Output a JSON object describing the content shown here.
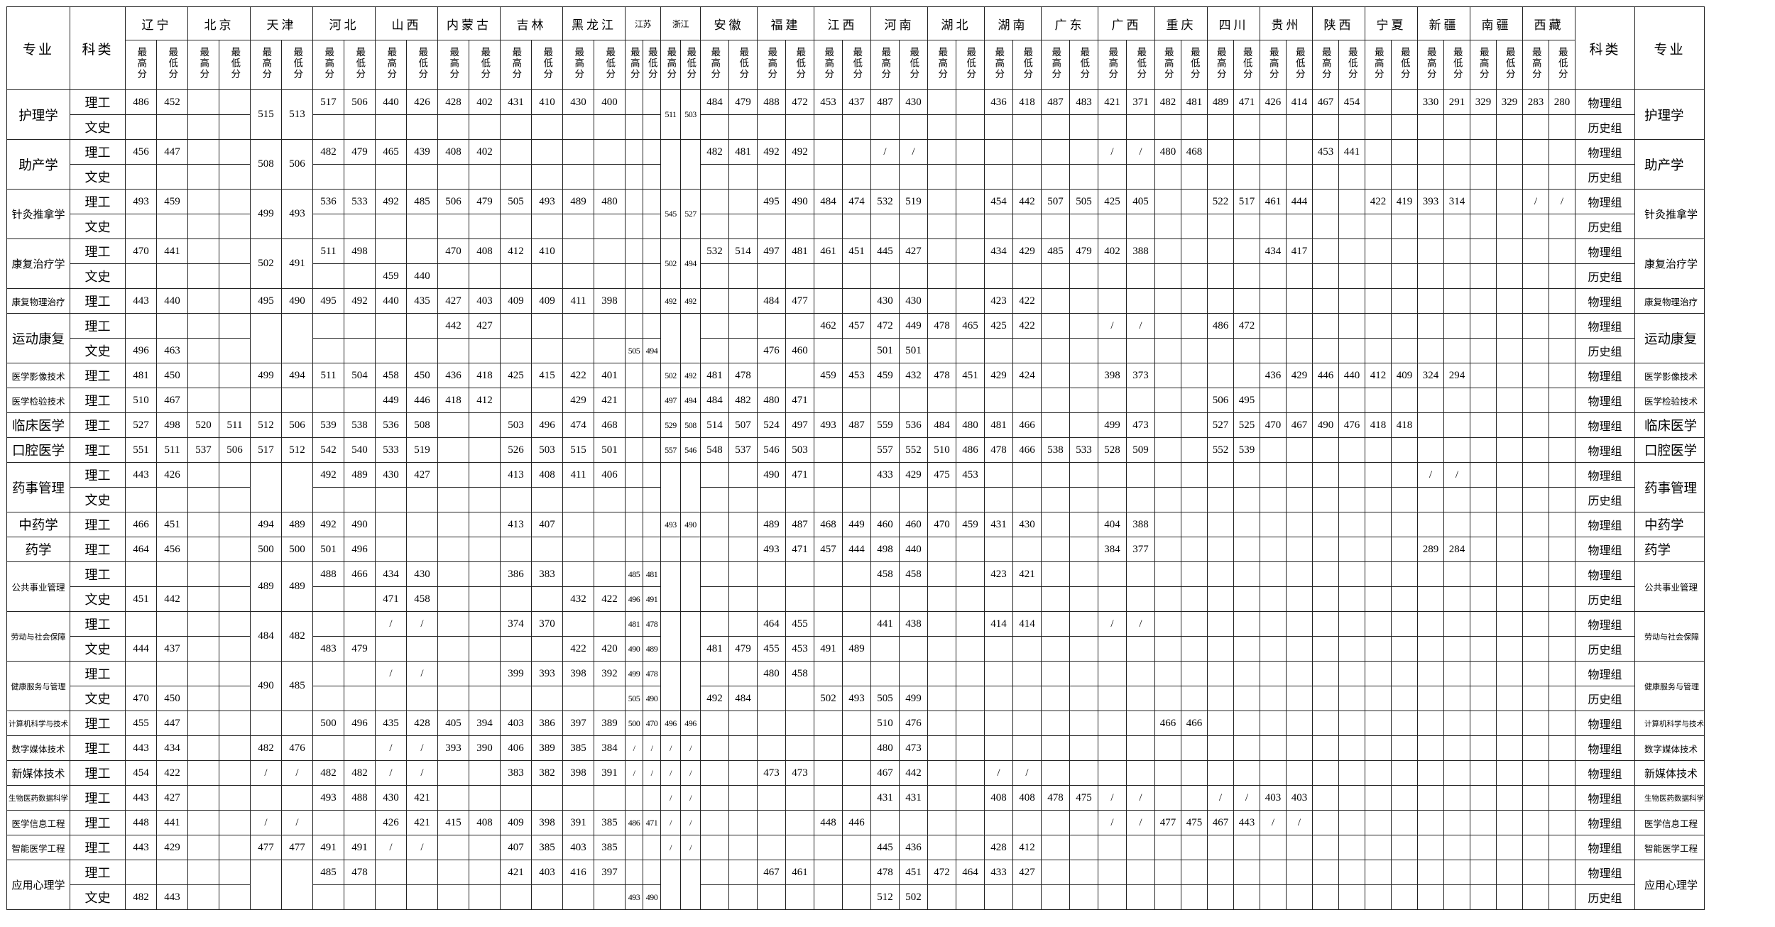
{
  "header": {
    "major_label": "专业",
    "category_label": "科类",
    "high_label": "最高分",
    "low_label": "最低分"
  },
  "labels": {
    "science": "理工",
    "arts": "文史",
    "physics": "物理组",
    "history": "历史组"
  },
  "provinces": [
    "辽宁",
    "北京",
    "天津",
    "河北",
    "山西",
    "内蒙古",
    "吉林",
    "黑龙江",
    "江苏",
    "浙江",
    "安徽",
    "福建",
    "江西",
    "河南",
    "湖北",
    "湖南",
    "广东",
    "广西",
    "重庆",
    "四川",
    "贵州",
    "陕西",
    "宁夏",
    "新疆",
    "南疆",
    "西藏"
  ],
  "majors": [
    {
      "name": "护理学",
      "science": {
        "辽宁": [
          "486",
          "452"
        ],
        "河北": [
          "517",
          "506"
        ],
        "山西": [
          "440",
          "426"
        ],
        "内蒙古": [
          "428",
          "402"
        ],
        "吉林": [
          "431",
          "410"
        ],
        "黑龙江": [
          "430",
          "400"
        ],
        "安徽": [
          "484",
          "479"
        ],
        "福建": [
          "488",
          "472"
        ],
        "江西": [
          "453",
          "437"
        ],
        "河南": [
          "487",
          "430"
        ],
        "湖南": [
          "436",
          "418"
        ],
        "广东": [
          "487",
          "483"
        ],
        "广西": [
          "421",
          "371"
        ],
        "重庆": [
          "482",
          "481"
        ],
        "四川": [
          "489",
          "471"
        ],
        "贵州": [
          "426",
          "414"
        ],
        "陕西": [
          "467",
          "454"
        ],
        "新疆": [
          "330",
          "291"
        ],
        "南疆": [
          "329",
          "329"
        ],
        "西藏": [
          "283",
          "280"
        ]
      },
      "arts": {},
      "merged": {
        "天津": [
          "515",
          "513"
        ],
        "浙江": [
          "511",
          "503"
        ]
      }
    },
    {
      "name": "助产学",
      "science": {
        "辽宁": [
          "456",
          "447"
        ],
        "河北": [
          "482",
          "479"
        ],
        "山西": [
          "465",
          "439"
        ],
        "内蒙古": [
          "408",
          "402"
        ],
        "安徽": [
          "482",
          "481"
        ],
        "福建": [
          "492",
          "492"
        ],
        "河南": [
          "/",
          "/"
        ],
        "广西": [
          "/",
          "/"
        ],
        "重庆": [
          "480",
          "468"
        ],
        "陕西": [
          "453",
          "441"
        ]
      },
      "arts": {},
      "merged": {
        "天津": [
          "508",
          "506"
        ]
      }
    },
    {
      "name": "针灸推拿学",
      "science": {
        "辽宁": [
          "493",
          "459"
        ],
        "河北": [
          "536",
          "533"
        ],
        "山西": [
          "492",
          "485"
        ],
        "内蒙古": [
          "506",
          "479"
        ],
        "吉林": [
          "505",
          "493"
        ],
        "黑龙江": [
          "489",
          "480"
        ],
        "福建": [
          "495",
          "490"
        ],
        "江西": [
          "484",
          "474"
        ],
        "河南": [
          "532",
          "519"
        ],
        "湖南": [
          "454",
          "442"
        ],
        "广东": [
          "507",
          "505"
        ],
        "广西": [
          "425",
          "405"
        ],
        "四川": [
          "522",
          "517"
        ],
        "贵州": [
          "461",
          "444"
        ],
        "宁夏": [
          "422",
          "419"
        ],
        "新疆": [
          "393",
          "314"
        ],
        "西藏": [
          "/",
          "/"
        ]
      },
      "arts": {},
      "merged": {
        "天津": [
          "499",
          "493"
        ],
        "浙江": [
          "545",
          "527"
        ]
      }
    },
    {
      "name": "康复治疗学",
      "science": {
        "辽宁": [
          "470",
          "441"
        ],
        "河北": [
          "511",
          "498"
        ],
        "内蒙古": [
          "470",
          "408"
        ],
        "吉林": [
          "412",
          "410"
        ],
        "安徽": [
          "532",
          "514"
        ],
        "福建": [
          "497",
          "481"
        ],
        "江西": [
          "461",
          "451"
        ],
        "河南": [
          "445",
          "427"
        ],
        "湖南": [
          "434",
          "429"
        ],
        "广东": [
          "485",
          "479"
        ],
        "广西": [
          "402",
          "388"
        ],
        "贵州": [
          "434",
          "417"
        ]
      },
      "arts": {
        "山西": [
          "459",
          "440"
        ]
      },
      "merged": {
        "天津": [
          "502",
          "491"
        ],
        "浙江": [
          "502",
          "494"
        ]
      }
    },
    {
      "name": "康复物理治疗",
      "science": {
        "辽宁": [
          "443",
          "440"
        ],
        "天津": [
          "495",
          "490"
        ],
        "河北": [
          "495",
          "492"
        ],
        "山西": [
          "440",
          "435"
        ],
        "内蒙古": [
          "427",
          "403"
        ],
        "吉林": [
          "409",
          "409"
        ],
        "黑龙江": [
          "411",
          "398"
        ],
        "浙江": [
          "492",
          "492"
        ],
        "福建": [
          "484",
          "477"
        ],
        "河南": [
          "430",
          "430"
        ],
        "湖南": [
          "423",
          "422"
        ]
      }
    },
    {
      "name": "运动康复",
      "science": {
        "内蒙古": [
          "442",
          "427"
        ],
        "江西": [
          "462",
          "457"
        ],
        "河南": [
          "472",
          "449"
        ],
        "湖北": [
          "478",
          "465"
        ],
        "湖南": [
          "425",
          "422"
        ],
        "广西": [
          "/",
          "/"
        ],
        "四川": [
          "486",
          "472"
        ]
      },
      "arts": {
        "辽宁": [
          "496",
          "463"
        ],
        "江苏": [
          "505",
          "494"
        ],
        "福建": [
          "476",
          "460"
        ],
        "河南": [
          "501",
          "501"
        ]
      },
      "merged": {}
    },
    {
      "name": "医学影像技术",
      "science": {
        "辽宁": [
          "481",
          "450"
        ],
        "天津": [
          "499",
          "494"
        ],
        "河北": [
          "511",
          "504"
        ],
        "山西": [
          "458",
          "450"
        ],
        "内蒙古": [
          "436",
          "418"
        ],
        "吉林": [
          "425",
          "415"
        ],
        "黑龙江": [
          "422",
          "401"
        ],
        "浙江": [
          "502",
          "492"
        ],
        "安徽": [
          "481",
          "478"
        ],
        "江西": [
          "459",
          "453"
        ],
        "河南": [
          "459",
          "432"
        ],
        "湖北": [
          "478",
          "451"
        ],
        "湖南": [
          "429",
          "424"
        ],
        "广西": [
          "398",
          "373"
        ],
        "贵州": [
          "436",
          "429"
        ],
        "陕西": [
          "446",
          "440"
        ],
        "宁夏": [
          "412",
          "409"
        ],
        "新疆": [
          "324",
          "294"
        ]
      }
    },
    {
      "name": "医学检验技术",
      "science": {
        "辽宁": [
          "510",
          "467"
        ],
        "山西": [
          "449",
          "446"
        ],
        "内蒙古": [
          "418",
          "412"
        ],
        "黑龙江": [
          "429",
          "421"
        ],
        "浙江": [
          "497",
          "494"
        ],
        "安徽": [
          "484",
          "482"
        ],
        "福建": [
          "480",
          "471"
        ],
        "四川": [
          "506",
          "495"
        ]
      }
    },
    {
      "name": "临床医学",
      "science": {
        "辽宁": [
          "527",
          "498"
        ],
        "北京": [
          "520",
          "511"
        ],
        "天津": [
          "512",
          "506"
        ],
        "河北": [
          "539",
          "538"
        ],
        "山西": [
          "536",
          "508"
        ],
        "吉林": [
          "503",
          "496"
        ],
        "黑龙江": [
          "474",
          "468"
        ],
        "浙江": [
          "529",
          "508"
        ],
        "安徽": [
          "514",
          "507"
        ],
        "福建": [
          "524",
          "497"
        ],
        "江西": [
          "493",
          "487"
        ],
        "河南": [
          "559",
          "536"
        ],
        "湖北": [
          "484",
          "480"
        ],
        "湖南": [
          "481",
          "466"
        ],
        "广西": [
          "499",
          "473"
        ],
        "四川": [
          "527",
          "525"
        ],
        "贵州": [
          "470",
          "467"
        ],
        "陕西": [
          "490",
          "476"
        ],
        "宁夏": [
          "418",
          "418"
        ]
      }
    },
    {
      "name": "口腔医学",
      "science": {
        "辽宁": [
          "551",
          "511"
        ],
        "北京": [
          "537",
          "506"
        ],
        "天津": [
          "517",
          "512"
        ],
        "河北": [
          "542",
          "540"
        ],
        "山西": [
          "533",
          "519"
        ],
        "吉林": [
          "526",
          "503"
        ],
        "黑龙江": [
          "515",
          "501"
        ],
        "浙江": [
          "557",
          "546"
        ],
        "安徽": [
          "548",
          "537"
        ],
        "福建": [
          "546",
          "503"
        ],
        "河南": [
          "557",
          "552"
        ],
        "湖北": [
          "510",
          "486"
        ],
        "湖南": [
          "478",
          "466"
        ],
        "广东": [
          "538",
          "533"
        ],
        "广西": [
          "528",
          "509"
        ],
        "四川": [
          "552",
          "539"
        ]
      }
    },
    {
      "name": "药事管理",
      "science": {
        "辽宁": [
          "443",
          "426"
        ],
        "河北": [
          "492",
          "489"
        ],
        "山西": [
          "430",
          "427"
        ],
        "吉林": [
          "413",
          "408"
        ],
        "黑龙江": [
          "411",
          "406"
        ],
        "福建": [
          "490",
          "471"
        ],
        "河南": [
          "433",
          "429"
        ],
        "湖北": [
          "475",
          "453"
        ],
        "新疆": [
          "/",
          "/"
        ]
      },
      "arts": {},
      "merged": {}
    },
    {
      "name": "中药学",
      "science": {
        "辽宁": [
          "466",
          "451"
        ],
        "天津": [
          "494",
          "489"
        ],
        "河北": [
          "492",
          "490"
        ],
        "吉林": [
          "413",
          "407"
        ],
        "浙江": [
          "493",
          "490"
        ],
        "福建": [
          "489",
          "487"
        ],
        "江西": [
          "468",
          "449"
        ],
        "河南": [
          "460",
          "460"
        ],
        "湖北": [
          "470",
          "459"
        ],
        "湖南": [
          "431",
          "430"
        ],
        "广西": [
          "404",
          "388"
        ]
      }
    },
    {
      "name": "药学",
      "science": {
        "辽宁": [
          "464",
          "456"
        ],
        "天津": [
          "500",
          "500"
        ],
        "河北": [
          "501",
          "496"
        ],
        "福建": [
          "493",
          "471"
        ],
        "江西": [
          "457",
          "444"
        ],
        "河南": [
          "498",
          "440"
        ],
        "广西": [
          "384",
          "377"
        ],
        "新疆": [
          "289",
          "284"
        ]
      }
    },
    {
      "name": "公共事业管理",
      "science": {
        "河北": [
          "488",
          "466"
        ],
        "山西": [
          "434",
          "430"
        ],
        "吉林": [
          "386",
          "383"
        ],
        "江苏": [
          "485",
          "481"
        ],
        "河南": [
          "458",
          "458"
        ],
        "湖南": [
          "423",
          "421"
        ]
      },
      "arts": {
        "辽宁": [
          "451",
          "442"
        ],
        "山西": [
          "471",
          "458"
        ],
        "黑龙江": [
          "432",
          "422"
        ],
        "江苏": [
          "496",
          "491"
        ]
      },
      "merged": {
        "天津": [
          "489",
          "489"
        ]
      }
    },
    {
      "name": "劳动与社会保障",
      "science": {
        "山西": [
          "/",
          "/"
        ],
        "吉林": [
          "374",
          "370"
        ],
        "江苏": [
          "481",
          "478"
        ],
        "福建": [
          "464",
          "455"
        ],
        "河南": [
          "441",
          "438"
        ],
        "湖南": [
          "414",
          "414"
        ],
        "广西": [
          "/",
          "/"
        ]
      },
      "arts": {
        "辽宁": [
          "444",
          "437"
        ],
        "河北": [
          "483",
          "479"
        ],
        "黑龙江": [
          "422",
          "420"
        ],
        "江苏": [
          "490",
          "489"
        ],
        "安徽": [
          "481",
          "479"
        ],
        "福建": [
          "455",
          "453"
        ],
        "江西": [
          "491",
          "489"
        ]
      },
      "merged": {
        "天津": [
          "484",
          "482"
        ]
      }
    },
    {
      "name": "健康服务与管理",
      "science": {
        "山西": [
          "/",
          "/"
        ],
        "吉林": [
          "399",
          "393"
        ],
        "黑龙江": [
          "398",
          "392"
        ],
        "江苏": [
          "499",
          "478"
        ],
        "福建": [
          "480",
          "458"
        ]
      },
      "arts": {
        "辽宁": [
          "470",
          "450"
        ],
        "江苏": [
          "505",
          "490"
        ],
        "安徽": [
          "492",
          "484"
        ],
        "江西": [
          "502",
          "493"
        ],
        "河南": [
          "505",
          "499"
        ]
      },
      "merged": {
        "天津": [
          "490",
          "485"
        ]
      }
    },
    {
      "name": "计算机科学与技术",
      "science": {
        "辽宁": [
          "455",
          "447"
        ],
        "河北": [
          "500",
          "496"
        ],
        "山西": [
          "435",
          "428"
        ],
        "内蒙古": [
          "405",
          "394"
        ],
        "吉林": [
          "403",
          "386"
        ],
        "黑龙江": [
          "397",
          "389"
        ],
        "江苏": [
          "500",
          "470"
        ],
        "浙江": [
          "496",
          "496"
        ],
        "河南": [
          "510",
          "476"
        ],
        "重庆": [
          "466",
          "466"
        ]
      }
    },
    {
      "name": "数字媒体技术",
      "science": {
        "辽宁": [
          "443",
          "434"
        ],
        "天津": [
          "482",
          "476"
        ],
        "山西": [
          "/",
          "/"
        ],
        "内蒙古": [
          "393",
          "390"
        ],
        "吉林": [
          "406",
          "389"
        ],
        "黑龙江": [
          "385",
          "384"
        ],
        "江苏": [
          "/",
          "/"
        ],
        "浙江": [
          "/",
          "/"
        ],
        "河南": [
          "480",
          "473"
        ]
      }
    },
    {
      "name": "新媒体技术",
      "science": {
        "辽宁": [
          "454",
          "422"
        ],
        "天津": [
          "/",
          "/"
        ],
        "河北": [
          "482",
          "482"
        ],
        "山西": [
          "/",
          "/"
        ],
        "吉林": [
          "383",
          "382"
        ],
        "黑龙江": [
          "398",
          "391"
        ],
        "江苏": [
          "/",
          "/"
        ],
        "浙江": [
          "/",
          "/"
        ],
        "福建": [
          "473",
          "473"
        ],
        "河南": [
          "467",
          "442"
        ],
        "湖南": [
          "/",
          "/"
        ]
      }
    },
    {
      "name": "生物医药数据科学",
      "science": {
        "辽宁": [
          "443",
          "427"
        ],
        "河北": [
          "493",
          "488"
        ],
        "山西": [
          "430",
          "421"
        ],
        "浙江": [
          "/",
          "/"
        ],
        "河南": [
          "431",
          "431"
        ],
        "湖南": [
          "408",
          "408"
        ],
        "广东": [
          "478",
          "475"
        ],
        "广西": [
          "/",
          "/"
        ],
        "四川": [
          "/",
          "/"
        ],
        "贵州": [
          "403",
          "403"
        ]
      }
    },
    {
      "name": "医学信息工程",
      "science": {
        "辽宁": [
          "448",
          "441"
        ],
        "天津": [
          "/",
          "/"
        ],
        "山西": [
          "426",
          "421"
        ],
        "内蒙古": [
          "415",
          "408"
        ],
        "吉林": [
          "409",
          "398"
        ],
        "黑龙江": [
          "391",
          "385"
        ],
        "江苏": [
          "486",
          "471"
        ],
        "浙江": [
          "/",
          "/"
        ],
        "江西": [
          "448",
          "446"
        ],
        "广西": [
          "/",
          "/"
        ],
        "重庆": [
          "477",
          "475"
        ],
        "四川": [
          "467",
          "443"
        ],
        "贵州": [
          "/",
          "/"
        ]
      }
    },
    {
      "name": "智能医学工程",
      "science": {
        "辽宁": [
          "443",
          "429"
        ],
        "天津": [
          "477",
          "477"
        ],
        "河北": [
          "491",
          "491"
        ],
        "山西": [
          "/",
          "/"
        ],
        "吉林": [
          "407",
          "385"
        ],
        "黑龙江": [
          "403",
          "385"
        ],
        "浙江": [
          "/",
          "/"
        ],
        "河南": [
          "445",
          "436"
        ],
        "湖南": [
          "428",
          "412"
        ]
      }
    },
    {
      "name": "应用心理学",
      "science": {
        "河北": [
          "485",
          "478"
        ],
        "吉林": [
          "421",
          "403"
        ],
        "黑龙江": [
          "416",
          "397"
        ],
        "福建": [
          "467",
          "461"
        ],
        "河南": [
          "478",
          "451"
        ],
        "湖北": [
          "472",
          "464"
        ],
        "湖南": [
          "433",
          "427"
        ]
      },
      "arts": {
        "辽宁": [
          "482",
          "443"
        ],
        "江苏": [
          "493",
          "490"
        ],
        "河南": [
          "512",
          "502"
        ]
      },
      "merged": {}
    }
  ]
}
